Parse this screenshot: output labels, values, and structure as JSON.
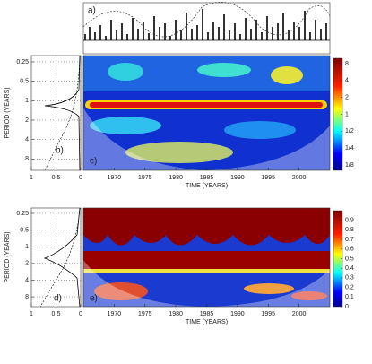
{
  "chart_data": [
    {
      "type": "line",
      "panel_label": "a)"
    },
    {
      "type": "spectrum",
      "panel_label": "b)",
      "ylabel": "PERIOD (YEARS)",
      "xlim": [
        1,
        0
      ],
      "xticks": [
        1,
        0.5,
        0
      ],
      "ylim": [
        0.2,
        12
      ],
      "yticks": [
        0.25,
        0.5,
        1,
        2,
        4,
        8
      ],
      "log_y": true,
      "grid": true
    },
    {
      "type": "heatmap",
      "panel_label": "c)",
      "xlabel": "TIME (YEARS)",
      "xlim": [
        1965,
        2005
      ],
      "xticks": [
        1970,
        1975,
        1980,
        1985,
        1990,
        1995,
        2000
      ],
      "ylim": [
        0.2,
        12
      ],
      "log_y": true,
      "colorbar_lim": [
        0.1,
        10
      ],
      "colorbar_log": true,
      "colorbar_ticks": [
        8,
        4,
        2,
        1,
        {
          "value": 0.5,
          "label": "1/2"
        },
        {
          "value": 0.25,
          "label": "1/4"
        },
        {
          "value": 0.125,
          "label": "1/8"
        }
      ]
    },
    {
      "type": "spectrum",
      "panel_label": "d)",
      "ylabel": "PERIOD (YEARS)",
      "xlim": [
        1,
        0
      ],
      "xticks": [
        1,
        {
          "value": 0.5,
          "label": "0·5"
        },
        0
      ],
      "ylim": [
        0.2,
        12
      ],
      "yticks": [
        0.25,
        0.5,
        1,
        2,
        4,
        8
      ],
      "log_y": true,
      "grid": true
    },
    {
      "type": "heatmap",
      "panel_label": "e)",
      "xlabel": "TIME (YEARS)",
      "xlim": [
        1965,
        2005
      ],
      "xticks": [
        1970,
        1975,
        1980,
        1985,
        1990,
        1995,
        2000
      ],
      "ylim": [
        0.2,
        12
      ],
      "log_y": true,
      "colorbar_lim": [
        0,
        1
      ],
      "colorbar_log": false,
      "colorbar_ticks": [
        0.9,
        0.8,
        0.7,
        0.6,
        0.5,
        0.4,
        0.3,
        0.2,
        0.1,
        0
      ]
    }
  ]
}
